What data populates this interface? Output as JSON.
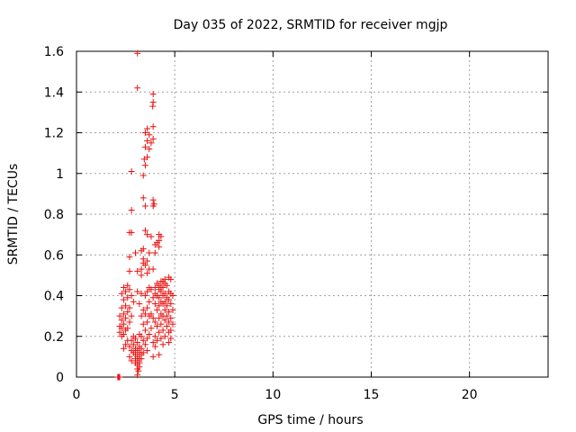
{
  "chart_data": {
    "type": "scatter",
    "title": "Day 035 of 2022, SRMTID for receiver mgjp",
    "xlabel": "GPS time / hours",
    "ylabel": "SRMTID / TECUs",
    "xlim": [
      0,
      24
    ],
    "ylim": [
      0,
      1.6
    ],
    "x_ticks": [
      0,
      5,
      10,
      15,
      20
    ],
    "x_tick_labels": [
      "0",
      "5",
      "10",
      "15",
      "20"
    ],
    "y_ticks": [
      0,
      0.2,
      0.4,
      0.6,
      0.8,
      1.0,
      1.2,
      1.4,
      1.6
    ],
    "y_tick_labels": [
      "0",
      "0.2",
      "0.4",
      "0.6",
      "0.8",
      "1",
      "1.2",
      "1.4",
      "1.6"
    ],
    "grid": true,
    "marker": "+",
    "color": "#e8110f",
    "series": [
      {
        "name": "SRMTID",
        "points": [
          [
            2.1,
            0.0
          ],
          [
            2.13,
            0.0
          ],
          [
            2.16,
            0.0
          ],
          [
            2.2,
            0.0
          ],
          [
            3.1,
            1.59
          ],
          [
            3.1,
            1.42
          ],
          [
            3.9,
            1.39
          ],
          [
            3.9,
            1.35
          ],
          [
            3.88,
            1.33
          ],
          [
            3.6,
            1.22
          ],
          [
            3.5,
            1.2
          ],
          [
            3.7,
            1.19
          ],
          [
            3.9,
            1.23
          ],
          [
            3.6,
            1.16
          ],
          [
            3.8,
            1.15
          ],
          [
            3.5,
            1.13
          ],
          [
            3.9,
            1.17
          ],
          [
            3.7,
            1.12
          ],
          [
            3.6,
            1.08
          ],
          [
            3.45,
            1.07
          ],
          [
            2.8,
            1.01
          ],
          [
            3.5,
            1.04
          ],
          [
            3.4,
            0.99
          ],
          [
            3.4,
            0.88
          ],
          [
            3.9,
            0.87
          ],
          [
            3.95,
            0.85
          ],
          [
            3.9,
            0.84
          ],
          [
            3.5,
            0.84
          ],
          [
            2.8,
            0.82
          ],
          [
            2.7,
            0.71
          ],
          [
            2.8,
            0.71
          ],
          [
            3.5,
            0.72
          ],
          [
            3.6,
            0.7
          ],
          [
            3.8,
            0.69
          ],
          [
            4.2,
            0.7
          ],
          [
            4.3,
            0.69
          ],
          [
            4.2,
            0.67
          ],
          [
            4.1,
            0.66
          ],
          [
            4.0,
            0.65
          ],
          [
            4.2,
            0.64
          ],
          [
            3.3,
            0.62
          ],
          [
            3.4,
            0.63
          ],
          [
            3.0,
            0.61
          ],
          [
            4.0,
            0.61
          ],
          [
            3.7,
            0.61
          ],
          [
            2.7,
            0.59
          ],
          [
            3.4,
            0.58
          ],
          [
            3.6,
            0.57
          ],
          [
            3.4,
            0.56
          ],
          [
            3.5,
            0.55
          ],
          [
            3.3,
            0.53
          ],
          [
            3.1,
            0.52
          ],
          [
            3.9,
            0.53
          ],
          [
            3.7,
            0.53
          ],
          [
            2.7,
            0.52
          ],
          [
            3.6,
            0.51
          ],
          [
            3.3,
            0.5
          ],
          [
            4.7,
            0.49
          ],
          [
            4.8,
            0.48
          ],
          [
            4.5,
            0.48
          ],
          [
            4.4,
            0.47
          ],
          [
            4.3,
            0.47
          ],
          [
            4.1,
            0.46
          ],
          [
            4.5,
            0.46
          ],
          [
            4.2,
            0.45
          ],
          [
            2.6,
            0.45
          ],
          [
            4.6,
            0.45
          ],
          [
            4.4,
            0.44
          ],
          [
            4.3,
            0.44
          ],
          [
            4.0,
            0.44
          ],
          [
            3.7,
            0.44
          ],
          [
            2.4,
            0.44
          ],
          [
            4.2,
            0.43
          ],
          [
            3.8,
            0.43
          ],
          [
            2.7,
            0.43
          ],
          [
            4.7,
            0.42
          ],
          [
            4.3,
            0.42
          ],
          [
            3.6,
            0.42
          ],
          [
            3.1,
            0.42
          ],
          [
            2.5,
            0.42
          ],
          [
            4.8,
            0.41
          ],
          [
            4.5,
            0.41
          ],
          [
            4.0,
            0.41
          ],
          [
            3.3,
            0.41
          ],
          [
            2.3,
            0.41
          ],
          [
            4.9,
            0.4
          ],
          [
            4.4,
            0.4
          ],
          [
            4.1,
            0.4
          ],
          [
            3.5,
            0.4
          ],
          [
            2.8,
            0.4
          ],
          [
            4.6,
            0.39
          ],
          [
            4.2,
            0.39
          ],
          [
            3.9,
            0.39
          ],
          [
            2.6,
            0.39
          ],
          [
            2.4,
            0.38
          ],
          [
            4.7,
            0.38
          ],
          [
            4.5,
            0.37
          ],
          [
            4.3,
            0.37
          ],
          [
            3.7,
            0.37
          ],
          [
            2.9,
            0.37
          ],
          [
            4.8,
            0.36
          ],
          [
            4.4,
            0.36
          ],
          [
            4.0,
            0.36
          ],
          [
            3.2,
            0.36
          ],
          [
            2.5,
            0.35
          ],
          [
            4.6,
            0.35
          ],
          [
            4.2,
            0.35
          ],
          [
            3.6,
            0.34
          ],
          [
            2.7,
            0.34
          ],
          [
            2.3,
            0.34
          ],
          [
            4.9,
            0.33
          ],
          [
            4.5,
            0.33
          ],
          [
            4.1,
            0.33
          ],
          [
            3.4,
            0.33
          ],
          [
            2.6,
            0.32
          ],
          [
            4.7,
            0.32
          ],
          [
            4.3,
            0.31
          ],
          [
            3.8,
            0.31
          ],
          [
            3.5,
            0.31
          ],
          [
            2.4,
            0.31
          ],
          [
            4.6,
            0.3
          ],
          [
            4.4,
            0.3
          ],
          [
            3.7,
            0.3
          ],
          [
            3.3,
            0.3
          ],
          [
            2.8,
            0.3
          ],
          [
            2.2,
            0.3
          ],
          [
            4.8,
            0.29
          ],
          [
            4.2,
            0.29
          ],
          [
            3.9,
            0.29
          ],
          [
            2.5,
            0.29
          ],
          [
            2.3,
            0.28
          ],
          [
            4.5,
            0.28
          ],
          [
            4.7,
            0.27
          ],
          [
            4.0,
            0.27
          ],
          [
            3.6,
            0.27
          ],
          [
            2.7,
            0.27
          ],
          [
            4.9,
            0.26
          ],
          [
            4.3,
            0.26
          ],
          [
            3.4,
            0.26
          ],
          [
            2.4,
            0.26
          ],
          [
            2.2,
            0.25
          ],
          [
            4.6,
            0.25
          ],
          [
            4.1,
            0.25
          ],
          [
            3.8,
            0.24
          ],
          [
            2.6,
            0.24
          ],
          [
            2.3,
            0.24
          ],
          [
            4.8,
            0.23
          ],
          [
            4.4,
            0.23
          ],
          [
            3.5,
            0.23
          ],
          [
            2.5,
            0.23
          ],
          [
            2.2,
            0.22
          ],
          [
            4.7,
            0.22
          ],
          [
            4.2,
            0.22
          ],
          [
            3.7,
            0.21
          ],
          [
            3.2,
            0.21
          ],
          [
            2.4,
            0.21
          ],
          [
            4.5,
            0.2
          ],
          [
            4.0,
            0.2
          ],
          [
            3.3,
            0.2
          ],
          [
            2.9,
            0.2
          ],
          [
            2.3,
            0.2
          ],
          [
            4.8,
            0.19
          ],
          [
            4.3,
            0.19
          ],
          [
            3.6,
            0.19
          ],
          [
            3.0,
            0.19
          ],
          [
            2.6,
            0.18
          ],
          [
            4.1,
            0.18
          ],
          [
            3.4,
            0.18
          ],
          [
            2.8,
            0.18
          ],
          [
            4.7,
            0.17
          ],
          [
            3.9,
            0.17
          ],
          [
            3.1,
            0.17
          ],
          [
            2.5,
            0.16
          ],
          [
            4.4,
            0.16
          ],
          [
            3.5,
            0.16
          ],
          [
            2.9,
            0.16
          ],
          [
            3.2,
            0.15
          ],
          [
            2.7,
            0.15
          ],
          [
            4.0,
            0.15
          ],
          [
            3.0,
            0.14
          ],
          [
            2.4,
            0.14
          ],
          [
            3.3,
            0.14
          ],
          [
            3.6,
            0.13
          ],
          [
            2.8,
            0.13
          ],
          [
            3.1,
            0.13
          ],
          [
            3.4,
            0.12
          ],
          [
            2.9,
            0.12
          ],
          [
            3.2,
            0.12
          ],
          [
            4.2,
            0.11
          ],
          [
            3.0,
            0.11
          ],
          [
            3.3,
            0.11
          ],
          [
            3.1,
            0.1
          ],
          [
            3.9,
            0.1
          ],
          [
            2.7,
            0.1
          ],
          [
            3.2,
            0.09
          ],
          [
            3.0,
            0.09
          ],
          [
            3.3,
            0.09
          ],
          [
            3.1,
            0.08
          ],
          [
            2.8,
            0.08
          ],
          [
            3.2,
            0.07
          ],
          [
            3.0,
            0.07
          ],
          [
            3.1,
            0.06
          ],
          [
            3.2,
            0.05
          ],
          [
            3.1,
            0.04
          ],
          [
            3.15,
            0.03
          ],
          [
            3.1,
            0.01
          ]
        ]
      }
    ]
  }
}
